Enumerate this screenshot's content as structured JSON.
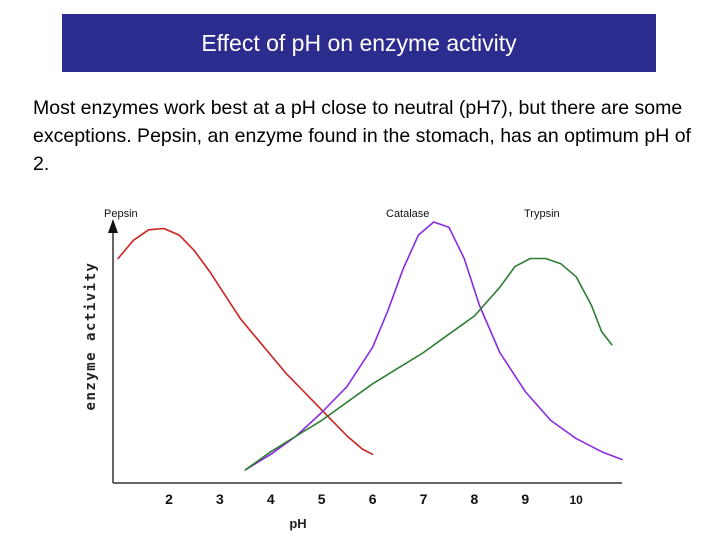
{
  "slide": {
    "title": "Effect of pH on enzyme activity",
    "intro": "Most enzymes work best at a pH close to neutral (pH7), but there are some exceptions. Pepsin, an enzyme found in the stomach, has an optimum pH of 2."
  },
  "chart_data": {
    "type": "line",
    "title": "",
    "xlabel": "pH",
    "ylabel": "enzyme activity",
    "xlim": [
      0.9,
      10.9
    ],
    "ylim": [
      0,
      100
    ],
    "xticks": [
      2,
      3,
      4,
      5,
      6,
      7,
      8,
      9,
      10
    ],
    "grid": false,
    "legend": "top labels",
    "colors": {
      "pepsin": "#cc2222",
      "catalase": "#8a2be2",
      "trypsin": "#2e7d32"
    },
    "series": [
      {
        "name": "Pepsin",
        "color": "#cc2222",
        "x": [
          1.0,
          1.3,
          1.6,
          1.9,
          2.2,
          2.5,
          2.8,
          3.1,
          3.4,
          3.7,
          4.0,
          4.3,
          4.6,
          4.9,
          5.2,
          5.5,
          5.8,
          6.0
        ],
        "y": [
          86,
          93,
          97,
          97.5,
          95,
          89,
          81,
          72,
          63,
          56,
          49,
          42,
          36,
          30,
          24,
          18,
          13,
          11
        ]
      },
      {
        "name": "Catalase",
        "color": "#8a2be2",
        "x": [
          3.5,
          4.0,
          4.5,
          5.0,
          5.5,
          6.0,
          6.3,
          6.6,
          6.9,
          7.2,
          7.5,
          7.8,
          8.1,
          8.5,
          9.0,
          9.5,
          10.0,
          10.5,
          10.9
        ],
        "y": [
          5,
          11,
          18,
          27,
          37,
          52,
          66,
          82,
          95,
          100,
          98,
          86,
          68,
          50,
          35,
          24,
          17,
          12,
          9
        ]
      },
      {
        "name": "Trypsin",
        "color": "#2e7d32",
        "x": [
          3.5,
          4.0,
          4.5,
          5.0,
          5.5,
          6.0,
          6.5,
          7.0,
          7.5,
          8.0,
          8.5,
          8.8,
          9.1,
          9.4,
          9.7,
          10.0,
          10.3,
          10.5,
          10.7
        ],
        "y": [
          5,
          12,
          18,
          24,
          31,
          38,
          44,
          50,
          57,
          64,
          75,
          83,
          86,
          86,
          84,
          79,
          68,
          58,
          53
        ]
      }
    ]
  }
}
